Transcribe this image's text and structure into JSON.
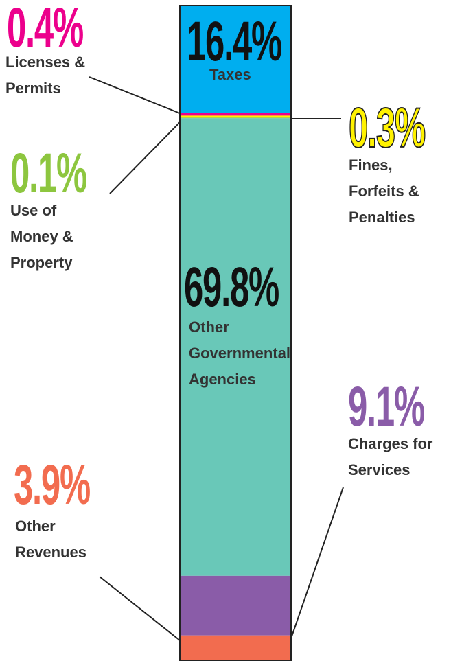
{
  "chart_data": {
    "type": "bar",
    "stacked": true,
    "ylim": [
      0,
      100
    ],
    "series": [
      {
        "name": "Taxes",
        "color": "#00aeef",
        "values": [
          16.4
        ],
        "value_labels": [
          "16.4%"
        ]
      },
      {
        "name": "Licenses & Permits",
        "color": "#ec008c",
        "values": [
          0.4
        ],
        "value_labels": [
          "0.4%"
        ]
      },
      {
        "name": "Fines, Forfeits & Penalties",
        "color": "#fff200",
        "values": [
          0.3
        ],
        "value_labels": [
          "0.3%"
        ]
      },
      {
        "name": "Use of Money & Property",
        "color": "#8dc63f",
        "values": [
          0.1
        ],
        "value_labels": [
          "0.1%"
        ]
      },
      {
        "name": "Other Governmental Agencies",
        "color": "#69c8b8",
        "values": [
          69.8
        ],
        "value_labels": [
          "69.8%"
        ]
      },
      {
        "name": "Charges for Services",
        "color": "#8a5ca8",
        "values": [
          9.1
        ],
        "value_labels": [
          "9.1%"
        ]
      },
      {
        "name": "Other Revenues",
        "color": "#f26c4f",
        "values": [
          3.9
        ],
        "value_labels": [
          "3.9%"
        ]
      }
    ]
  }
}
